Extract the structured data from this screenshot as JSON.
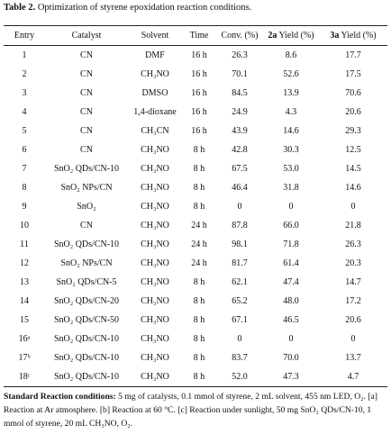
{
  "caption": {
    "label": "Table 2.",
    "text": " Optimization of styrene epoxidation reaction conditions."
  },
  "table": {
    "header": [
      {
        "text": "Entry"
      },
      {
        "text": "Catalyst"
      },
      {
        "text": "Solvent"
      },
      {
        "text": "Time"
      },
      {
        "text": "Conv. (%)"
      },
      {
        "bold": "2a",
        "text": " Yield (%)"
      },
      {
        "bold": "3a",
        "text": " Yield (%)"
      }
    ],
    "rows": [
      [
        "1",
        "CN",
        "DMF",
        "16 h",
        "26.3",
        "8.6",
        "17.7"
      ],
      [
        "2",
        "CN",
        "CH₃NO",
        "16 h",
        "70.1",
        "52.6",
        "17.5"
      ],
      [
        "3",
        "CN",
        "DMSO",
        "16 h",
        "84.5",
        "13.9",
        "70.6"
      ],
      [
        "4",
        "CN",
        "1,4-dioxane",
        "16 h",
        "24.9",
        "4.3",
        "20.6"
      ],
      [
        "5",
        "CN",
        "CH₃CN",
        "16 h",
        "43.9",
        "14.6",
        "29.3"
      ],
      [
        "6",
        "CN",
        "CH₃NO",
        "8 h",
        "42.8",
        "30.3",
        "12.5"
      ],
      [
        "7",
        "SnO₂ QDs/CN-10",
        "CH₃NO",
        "8 h",
        "67.5",
        "53.0",
        "14.5"
      ],
      [
        "8",
        "SnO₂ NPs/CN",
        "CH₃NO",
        "8 h",
        "46.4",
        "31.8",
        "14.6"
      ],
      [
        "9",
        "SnO₂",
        "CH₃NO",
        "8 h",
        "0",
        "0",
        "0"
      ],
      [
        "10",
        "CN",
        "CH₃NO",
        "24 h",
        "87.8",
        "66.0",
        "21.8"
      ],
      [
        "11",
        "SnO₂ QDs/CN-10",
        "CH₃NO",
        "24 h",
        "98.1",
        "71.8",
        "26.3"
      ],
      [
        "12",
        "SnO₂ NPs/CN",
        "CH₃NO",
        "24 h",
        "81.7",
        "61.4",
        "20.3"
      ],
      [
        "13",
        "SnO₂ QDs/CN-5",
        "CH₃NO",
        "8 h",
        "62.1",
        "47.4",
        "14.7"
      ],
      [
        "14",
        "SnO₂ QDs/CN-20",
        "CH₃NO",
        "8 h",
        "65.2",
        "48.0",
        "17.2"
      ],
      [
        "15",
        "SnO₂ QDs/CN-50",
        "CH₃NO",
        "8 h",
        "67.1",
        "46.5",
        "20.6"
      ],
      [
        "16ᵃ",
        "SnO₂ QDs/CN-10",
        "CH₃NO",
        "8 h",
        "0",
        "0",
        "0"
      ],
      [
        "17ᵇ",
        "SnO₂ QDs/CN-10",
        "CH₃NO",
        "8 h",
        "83.7",
        "70.0",
        "13.7"
      ],
      [
        "18ᶜ",
        "SnO₂ QDs/CN-10",
        "CH₃NO",
        "8 h",
        "52.0",
        "47.3",
        "4.7"
      ]
    ]
  },
  "footnote": {
    "label": "Standard Reaction conditions:",
    "text": " 5 mg of catalysts, 0.1 mmol of styrene, 2 mL solvent, 455 nm LED, O₂. [a] Reaction at Ar atmosphere. [b] Reaction at 60 °C. [c] Reaction under sunlight, 50 mg SnO₂ QDs/CN-10, 1 mmol of styrene, 20 mL CH₃NO, O₂."
  }
}
